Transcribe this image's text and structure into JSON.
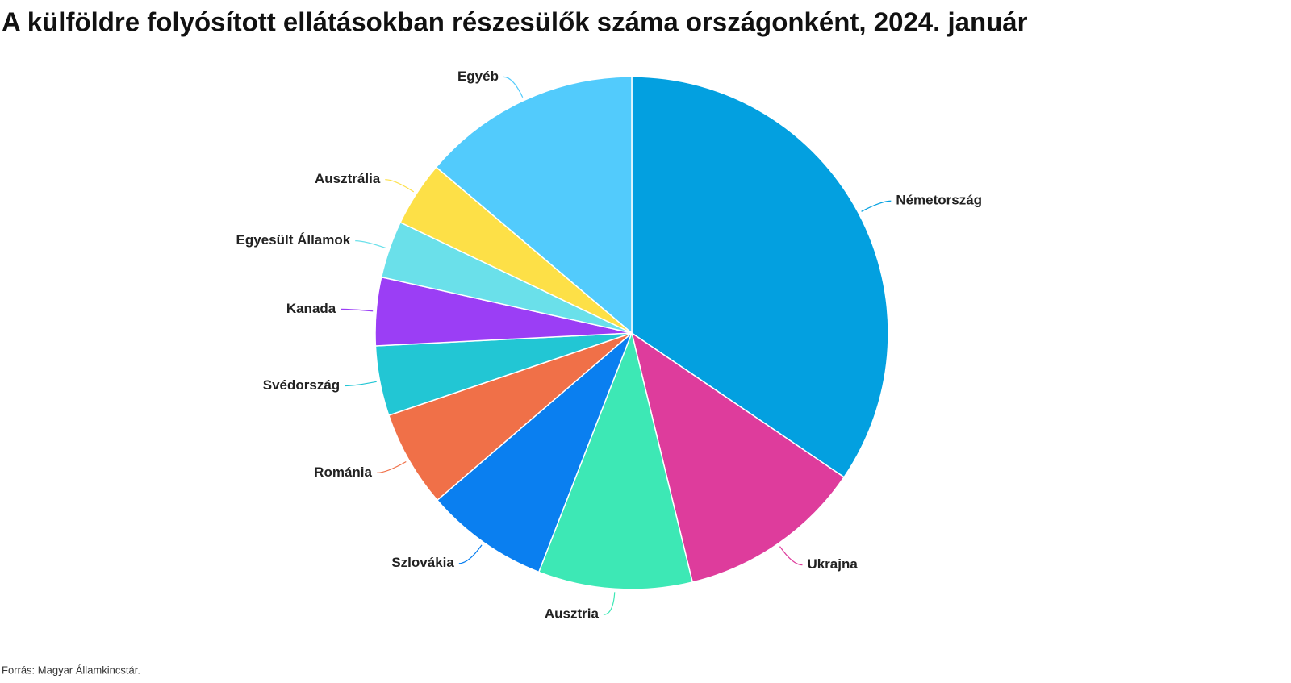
{
  "chart_data": {
    "type": "pie",
    "title": "A külföldre folyósított ellátásokban részesülők száma országonként, 2024. január",
    "categories": [
      "Németország",
      "Ukrajna",
      "Ausztria",
      "Szlovákia",
      "Románia",
      "Svédország",
      "Kanada",
      "Egyesült Államok",
      "Ausztrália",
      "Egyéb"
    ],
    "values": [
      34.5,
      11.7,
      9.7,
      7.8,
      6.1,
      4.4,
      4.3,
      3.6,
      4.1,
      13.8
    ],
    "colors": [
      "#03a0e0",
      "#de3c9c",
      "#3de8b5",
      "#0a7ff0",
      "#f07048",
      "#22c6d4",
      "#9b3ef5",
      "#6ae0ea",
      "#fde047",
      "#52cbfc"
    ],
    "source": "Forrás: Magyar Államkincstár."
  }
}
